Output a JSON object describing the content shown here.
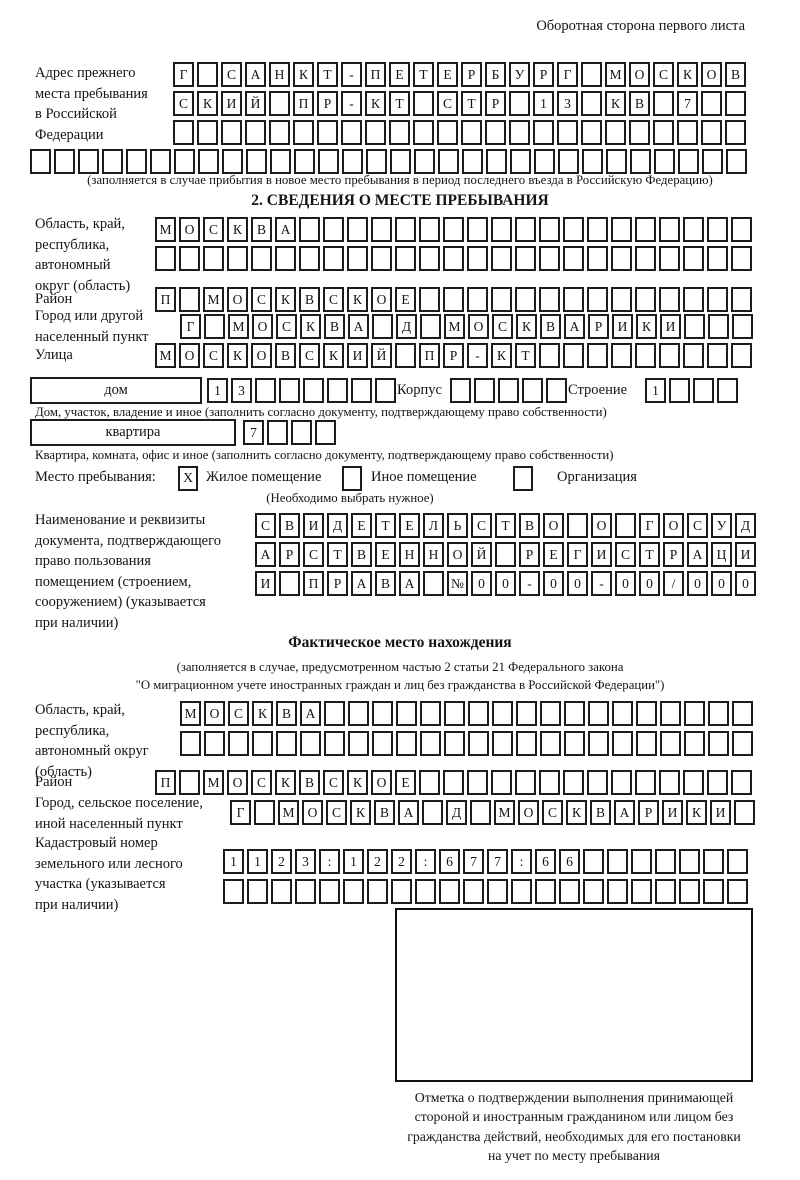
{
  "header": {
    "note": "Оборотная сторона первого листа"
  },
  "prev_address": {
    "label": "Адрес прежнего\nместа пребывания\nв Российской\nФедерации",
    "rows": [
      {
        "text": "Г САНКТ-ПЕТЕРБУРГ МОСКОВ",
        "count": 24
      },
      {
        "text": "СКИЙ ПР-КТ СТР 13 КВ 7",
        "count": 24
      },
      {
        "text": "",
        "count": 24
      },
      {
        "text": "",
        "count": 30
      }
    ],
    "caption": "(заполняется в случае прибытия в новое место пребывания в период последнего въезда в Российскую Федерацию)"
  },
  "section2": {
    "title": "2. СВЕДЕНИЯ О МЕСТЕ ПРЕБЫВАНИЯ",
    "region": {
      "label": "Область, край,\nреспублика,\nавтономный\nокруг (область)",
      "rows": [
        {
          "text": "МОСКВА",
          "count": 25
        },
        {
          "text": "",
          "count": 25
        }
      ]
    },
    "district": {
      "label": "Район",
      "row": {
        "text": "П МОСКВСКОЕ",
        "count": 25
      }
    },
    "city": {
      "label": "Город или другой\nнаселенный пункт",
      "row": {
        "text": "Г МОСКВА Д МОСКВАРИКИ",
        "count": 24
      }
    },
    "street": {
      "label": "Улица",
      "row": {
        "text": "МОСКОВСКИЙ ПР-КТ",
        "count": 25
      }
    },
    "house": {
      "box_label": "дом",
      "cells": {
        "text": "13",
        "count": 8
      },
      "korpus_label": "Корпус",
      "korpus_cells": {
        "text": "",
        "count": 5
      },
      "stroenie_label": "Строение",
      "stroenie_cells": {
        "text": "1",
        "count": 4
      },
      "caption": "Дом, участок, владение и иное (заполнить согласно документу, подтверждающему право собственности)"
    },
    "apartment": {
      "box_label": "квартира",
      "cells": {
        "text": "7",
        "count": 4
      },
      "caption": "Квартира, комната, офис и иное (заполнить согласно документу, подтверждающему право собственности)"
    },
    "stay": {
      "label": "Место пребывания:",
      "options": [
        {
          "label": "Жилое помещение",
          "mark": "X"
        },
        {
          "label": "Иное помещение",
          "mark": ""
        },
        {
          "label": "Организация",
          "mark": ""
        }
      ],
      "note": "(Необходимо выбрать нужное)"
    },
    "doc": {
      "label": "Наименование и реквизиты\nдокумента, подтверждающего\nправо пользования\nпомещением (строением,\nсооружением) (указывается\nпри наличии)",
      "rows": [
        {
          "text": "СВИДЕТЕЛЬСТВО О ГОСУД",
          "count": 21
        },
        {
          "text": "АРСТВЕННОЙ РЕГИСТРАЦИ",
          "count": 21
        },
        {
          "text": "И ПРАВА №00-00-00/000",
          "count": 21
        }
      ]
    }
  },
  "fact": {
    "title": "Фактическое место нахождения",
    "caption": "(заполняется в случае, предусмотренном частью 2 статьи 21 Федерального закона\n\"О миграционном учете иностранных граждан и лиц без гражданства в Российской Федерации\")",
    "region": {
      "label": "Область, край,\nреспублика,\nавтономный округ\n(область)",
      "rows": [
        {
          "text": "МОСКВА",
          "count": 24
        },
        {
          "text": "",
          "count": 24
        }
      ]
    },
    "district": {
      "label": "Район",
      "row": {
        "text": "П МОСКВСКОЕ",
        "count": 25
      }
    },
    "city": {
      "label": "Город, сельское поселение,\nиной населенный пункт",
      "row": {
        "text": "Г МОСКВА Д МОСКВАРИКИ",
        "count": 22
      }
    },
    "cadastre": {
      "label": "Кадастровый номер\nземельного или лесного\nучастка (указывается\nпри наличии)",
      "rows": [
        {
          "text": "1123:122:677:66",
          "count": 22
        },
        {
          "text": "",
          "count": 22
        }
      ]
    },
    "stamp_note": "Отметка о подтверждении выполнения принимающей\nстороной и иностранным гражданином или лицом без\nгражданства действий, необходимых для его постановки\nна учет по месту пребывания"
  }
}
